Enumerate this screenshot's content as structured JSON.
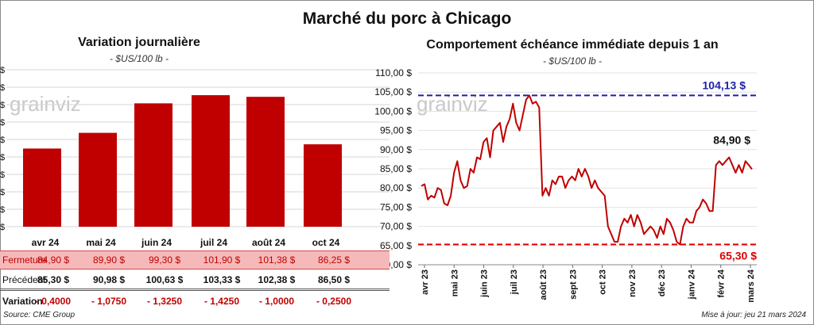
{
  "title": "Marché du porc à Chicago",
  "left": {
    "title": "Variation journalière",
    "subtitle": "- $US/100 lb -",
    "watermark": "grainviz"
  },
  "right": {
    "title": "Comportement échéance immédiate depuis 1 an",
    "subtitle": "- $US/100 lb -",
    "watermark": "grainviz"
  },
  "table": {
    "rows": [
      {
        "label": "Fermeture",
        "values": [
          "84,90  $",
          "89,90  $",
          "99,30  $",
          "101,90  $",
          "101,38  $",
          "86,25  $"
        ]
      },
      {
        "label": "Précédent",
        "values": [
          "85,30  $",
          "90,98  $",
          "100,63  $",
          "103,33  $",
          "102,38  $",
          "86,50  $"
        ]
      },
      {
        "label": "Variation",
        "values": [
          "- 0,4000",
          "- 1,0750",
          "- 1,3250",
          "- 1,4250",
          "- 1,0000",
          "- 0,2500"
        ]
      }
    ]
  },
  "footer": {
    "source": "Source: CME Group",
    "updated": "Mise à jour: jeu 21 mars 2024"
  },
  "colors": {
    "bar": "#c00000",
    "line": "#c00000",
    "max_line": "#1f1fa8",
    "min_line": "#e00000",
    "close_row": "#f6b9b9"
  },
  "chart_data": [
    {
      "type": "bar",
      "categories": [
        "avr 24",
        "mai 24",
        "juin 24",
        "juil 24",
        "août 24",
        "oct 24"
      ],
      "values": [
        84.9,
        89.9,
        99.3,
        101.9,
        101.38,
        86.25
      ],
      "tick_marks": [
        "$",
        "$",
        "$",
        "$",
        "$",
        "$",
        "$",
        "$",
        "$",
        "$"
      ],
      "grid": true
    },
    {
      "type": "line",
      "ylim": [
        60,
        110
      ],
      "yticks": [
        "110,00 $",
        "105,00 $",
        "100,00 $",
        "95,00 $",
        "90,00 $",
        "85,00 $",
        "80,00 $",
        "75,00 $",
        "70,00 $",
        "65,00 $",
        "60,00 $"
      ],
      "xticks": [
        "avr 23",
        "mai 23",
        "juin 23",
        "juil 23",
        "août 23",
        "sept 23",
        "oct 23",
        "nov 23",
        "déc 23",
        "janv 24",
        "févr 24",
        "mars 24"
      ],
      "max": {
        "value": 104.13,
        "label": "104,13 $"
      },
      "min": {
        "value": 65.3,
        "label": "65,30 $"
      },
      "last": {
        "label": "84,90 $"
      },
      "values": [
        80.5,
        81,
        77,
        78,
        77.5,
        80,
        79.5,
        76,
        75.5,
        78,
        84,
        87,
        82,
        80,
        80.5,
        85,
        84,
        88,
        87.5,
        92,
        93,
        88,
        95,
        96,
        97,
        92,
        96,
        98,
        102,
        97,
        95,
        99,
        103,
        104.13,
        102,
        102.5,
        101,
        78,
        80,
        78,
        82,
        81,
        83,
        83,
        80,
        82,
        83,
        82,
        85,
        83,
        85,
        83,
        80,
        82,
        80,
        79,
        78,
        70,
        68,
        66,
        66,
        70,
        72,
        71,
        73,
        70,
        73,
        71,
        68,
        69,
        70,
        69,
        67,
        70,
        68,
        72,
        71,
        69,
        66,
        65.3,
        70,
        72,
        71,
        71,
        74,
        75,
        77,
        76,
        74,
        74,
        86,
        87,
        86,
        87,
        88,
        86,
        84,
        86,
        84,
        87,
        86,
        84.9
      ],
      "grid": true
    }
  ]
}
